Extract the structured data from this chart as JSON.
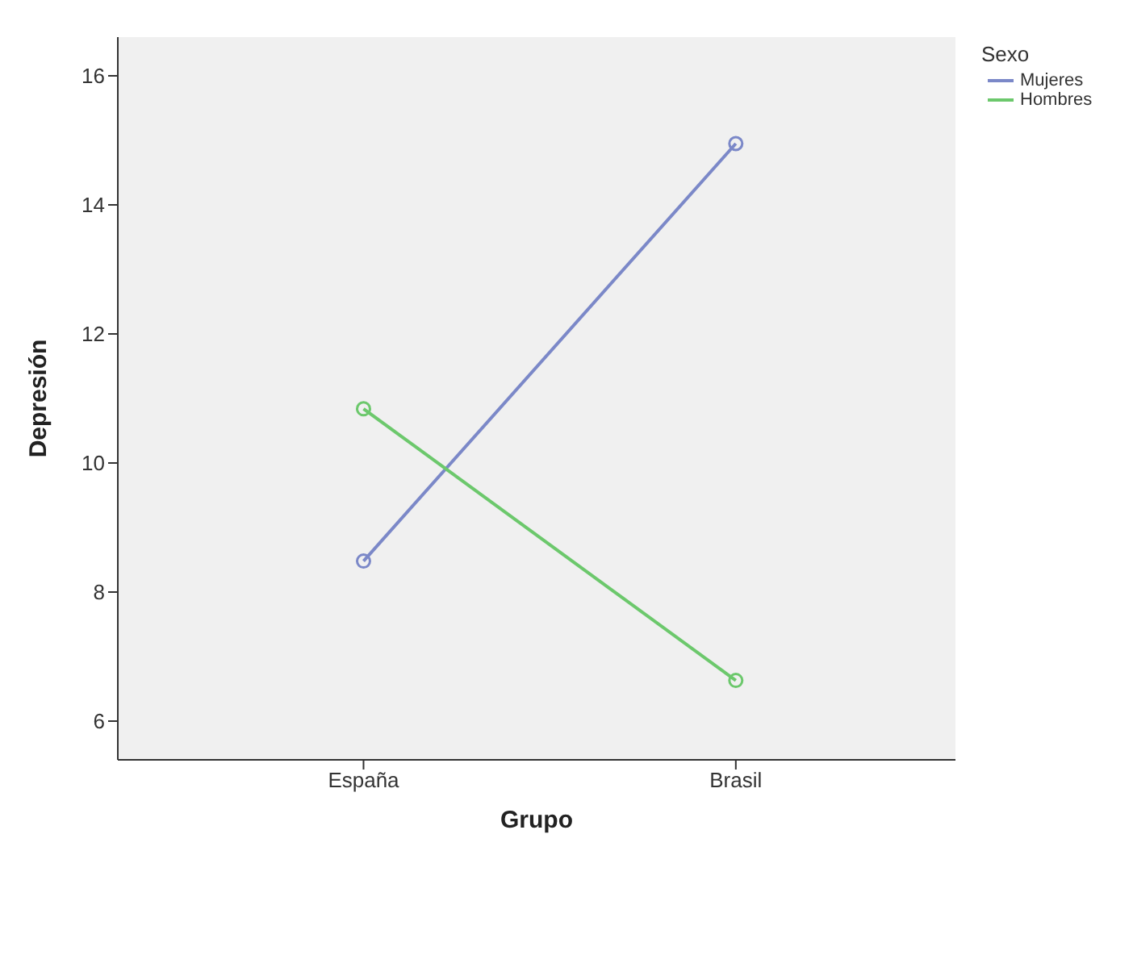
{
  "chart_data": {
    "type": "line",
    "xlabel": "Grupo",
    "ylabel": "Depresión",
    "legend_title": "Sexo",
    "categories": [
      "España",
      "Brasil"
    ],
    "series": [
      {
        "name": "Mujeres",
        "color": "#7b88c8",
        "values": [
          8.48,
          14.95
        ]
      },
      {
        "name": "Hombres",
        "color": "#6cc86c",
        "values": [
          10.84,
          6.63
        ]
      }
    ],
    "ylim": [
      5.4,
      16.6
    ],
    "yticks": [
      6,
      8,
      10,
      12,
      14,
      16
    ],
    "legend": "top right",
    "marker": "circle",
    "line_style": "solid"
  }
}
